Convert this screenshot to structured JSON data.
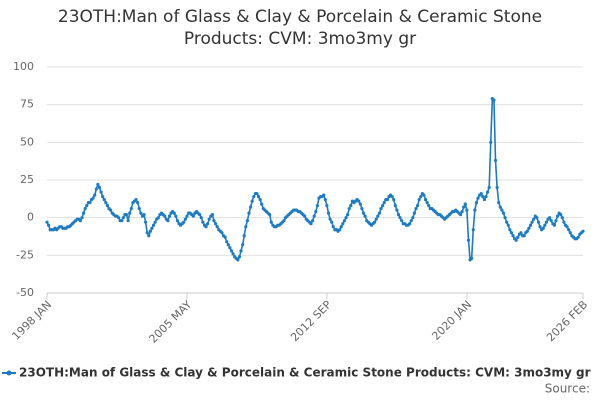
{
  "chart_data": {
    "type": "line",
    "title": "23OTH:Man of Glass & Clay & Porcelain & Ceramic Stone Products: CVM: 3mo3my gr",
    "source": "Source:",
    "categories": [
      "1998 JAN",
      null,
      null,
      null,
      null,
      null,
      null,
      null,
      null,
      null,
      null,
      null,
      null,
      null,
      null,
      null,
      null,
      null,
      null,
      null,
      null,
      null,
      null,
      null,
      null,
      null,
      null,
      null,
      null,
      null,
      null,
      null,
      null,
      null,
      null,
      null,
      null,
      null,
      null,
      null,
      null,
      null,
      null,
      null,
      null,
      null,
      null,
      null,
      null,
      null,
      null,
      null,
      null,
      null,
      null,
      null,
      null,
      null,
      null,
      null,
      null,
      null,
      null,
      null,
      null,
      null,
      null,
      null,
      null,
      null,
      null,
      null,
      null,
      null,
      null,
      null,
      null,
      null,
      null,
      null,
      null,
      null,
      null,
      null,
      null,
      null,
      null,
      null,
      "2005 MAY",
      null,
      null,
      null,
      null,
      null,
      null,
      null,
      null,
      null,
      null,
      null,
      null,
      null,
      null,
      null,
      null,
      null,
      null,
      null,
      null,
      null,
      null,
      null,
      null,
      null,
      null,
      null,
      null,
      null,
      null,
      null,
      null,
      null,
      null,
      null,
      null,
      null,
      null,
      null,
      null,
      null,
      null,
      null,
      null,
      null,
      null,
      null,
      null,
      null,
      null,
      null,
      null,
      null,
      null,
      null,
      null,
      null,
      null,
      null,
      null,
      null,
      null,
      null,
      null,
      null,
      null,
      null,
      null,
      null,
      null,
      null,
      null,
      null,
      null,
      null,
      null,
      null,
      null,
      null,
      null,
      null,
      null,
      null,
      null,
      null,
      null,
      null,
      "2012 SEP",
      null,
      null,
      null,
      null,
      null,
      null,
      null,
      null,
      null,
      null,
      null,
      null,
      null,
      null,
      null,
      null,
      null,
      null,
      null,
      null,
      null,
      null,
      null,
      null,
      null,
      null,
      null,
      null,
      null,
      null,
      null,
      null,
      null,
      null,
      null,
      null,
      null,
      null,
      null,
      null,
      null,
      null,
      null,
      null,
      null,
      null,
      null,
      null,
      null,
      null,
      null,
      null,
      null,
      null,
      null,
      null,
      null,
      null,
      null,
      null,
      null,
      null,
      null,
      null,
      null,
      null,
      null,
      null,
      null,
      null,
      null,
      null,
      null,
      null,
      null,
      null,
      null,
      null,
      null,
      null,
      null,
      null,
      null,
      null,
      null,
      null,
      null,
      "2020 JAN",
      null,
      null,
      null,
      null,
      null,
      null,
      null,
      null,
      null,
      null,
      null,
      null,
      null,
      null,
      null,
      null,
      null,
      null,
      null,
      null,
      null,
      null,
      null,
      null,
      null,
      null,
      null,
      null,
      null,
      null,
      null,
      null,
      null,
      null,
      null,
      null,
      null,
      null,
      null,
      null,
      null,
      null,
      null,
      null,
      null,
      null,
      null,
      null,
      null,
      null,
      null,
      null,
      null,
      null,
      null,
      null,
      null,
      null,
      null,
      null,
      null,
      null,
      null,
      null,
      null,
      null,
      null,
      null,
      null,
      null,
      null,
      null,
      "2026 FEB"
    ],
    "series": [
      {
        "name": "23OTH:Man of Glass & Clay & Porcelain & Ceramic Stone Products: CVM: 3mo3my gr",
        "color": "#1f7bc0",
        "values": [
          -3,
          -5,
          -8,
          -8,
          -8,
          -7,
          -8,
          -7,
          -6,
          -6,
          -7,
          -7,
          -7,
          -6,
          -6,
          -5,
          -4,
          -3,
          -2,
          -1,
          -1,
          -2,
          0,
          3,
          6,
          8,
          10,
          10,
          12,
          13,
          15,
          19,
          22,
          20,
          17,
          14,
          12,
          10,
          8,
          6,
          5,
          3,
          2,
          1,
          1,
          0,
          -2,
          -2,
          0,
          2,
          2,
          -2,
          3,
          6,
          10,
          11,
          12,
          10,
          6,
          3,
          1,
          2,
          -3,
          -10,
          -12,
          -9,
          -7,
          -5,
          -3,
          -1,
          0,
          2,
          3,
          2,
          1,
          -1,
          -2,
          1,
          3,
          4,
          3,
          1,
          -2,
          -4,
          -5,
          -4,
          -3,
          -1,
          1,
          3,
          3,
          2,
          1,
          3,
          4,
          3,
          2,
          0,
          -3,
          -5,
          -6,
          -4,
          -1,
          1,
          2,
          -2,
          -4,
          -6,
          -8,
          -9,
          -10,
          -12,
          -13,
          -16,
          -18,
          -20,
          -22,
          -24,
          -26,
          -27,
          -28,
          -26,
          -22,
          -18,
          -12,
          -6,
          -2,
          3,
          7,
          11,
          14,
          16,
          16,
          14,
          12,
          9,
          6,
          5,
          4,
          3,
          2,
          -3,
          -5,
          -6,
          -6,
          -5,
          -5,
          -4,
          -3,
          -2,
          0,
          1,
          2,
          3,
          4,
          5,
          5,
          5,
          4,
          4,
          3,
          2,
          1,
          -1,
          -2,
          -3,
          -4,
          -2,
          1,
          4,
          8,
          13,
          14,
          14,
          15,
          12,
          8,
          3,
          -1,
          -3,
          -6,
          -8,
          -8,
          -9,
          -8,
          -6,
          -4,
          -2,
          0,
          2,
          6,
          8,
          11,
          10,
          11,
          12,
          11,
          9,
          6,
          3,
          1,
          -2,
          -3,
          -4,
          -5,
          -4,
          -3,
          -1,
          1,
          3,
          6,
          8,
          10,
          12,
          12,
          14,
          15,
          14,
          12,
          8,
          5,
          2,
          0,
          -2,
          -4,
          -4,
          -5,
          -5,
          -4,
          -2,
          0,
          3,
          6,
          8,
          12,
          14,
          16,
          15,
          12,
          10,
          8,
          6,
          6,
          5,
          4,
          3,
          2,
          2,
          1,
          0,
          -1,
          0,
          1,
          2,
          3,
          4,
          4,
          5,
          4,
          3,
          2,
          4,
          7,
          9,
          5,
          -15,
          -28,
          -27,
          -8,
          5,
          10,
          13,
          15,
          16,
          14,
          12,
          14,
          17,
          20,
          50,
          79,
          78,
          38,
          20,
          10,
          7,
          5,
          3,
          0,
          -3,
          -5,
          -8,
          -10,
          -12,
          -14,
          -15,
          -13,
          -11,
          -10,
          -12,
          -12,
          -10,
          -9,
          -7,
          -5,
          -3,
          -1,
          1,
          0,
          -3,
          -6,
          -8,
          -7,
          -5,
          -3,
          -1,
          0,
          -2,
          -4,
          -5,
          -2,
          1,
          3,
          2,
          0,
          -3,
          -5,
          -6,
          -8,
          -10,
          -12,
          -13,
          -14,
          -14,
          -13,
          -11,
          -10,
          -9
        ]
      }
    ],
    "ylim": [
      -50,
      100
    ],
    "yticks": [
      -50,
      -25,
      0,
      25,
      50,
      75,
      100
    ],
    "grid": true
  }
}
